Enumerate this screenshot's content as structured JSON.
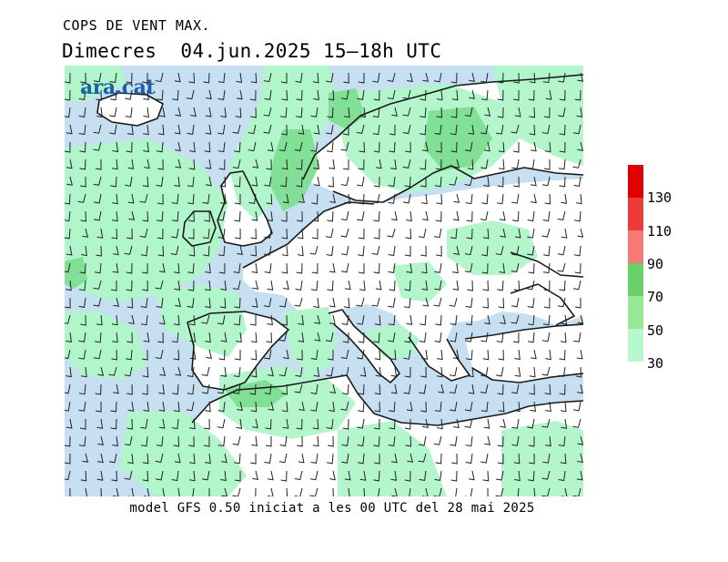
{
  "header": {
    "title": "COPS DE VENT MAX.",
    "subtitle": "Dimecres  04.jun.2025 15–18h UTC"
  },
  "logo": {
    "text": "ara.cat"
  },
  "footer": {
    "model_info": "model GFS 0.50 iniciat a les 00 UTC del 28 mai 2025"
  },
  "legend": {
    "labels": [
      "130",
      "110",
      "90",
      "70",
      "50",
      "30"
    ],
    "colors": [
      "#e00000",
      "#ef3a3a",
      "#f77a7a",
      "#6ad06a",
      "#98e898",
      "#b8f8d0"
    ]
  },
  "colors": {
    "sea": "#c6dff1",
    "land": "#ffffff",
    "gust_30_50": "#b0f5c8",
    "gust_50_70": "#7ede91"
  }
}
